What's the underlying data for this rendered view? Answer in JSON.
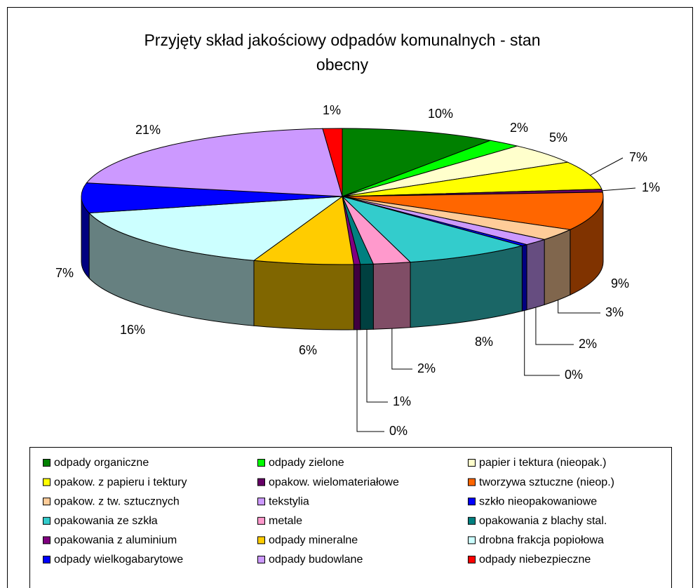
{
  "chart_data": {
    "type": "pie3d",
    "title": "Przyjęty skład jakościowy odpadów komunalnych - stan obecny",
    "categories": [
      "odpady organiczne",
      "odpady zielone",
      "papier i tektura (nieopak.)",
      "opakow. z papieru i tektury",
      "opakow. wielomateriałowe",
      "tworzywa sztuczne (nieop.)",
      "opakow. z tw. sztucznych",
      "tekstylia",
      "szkło nieopakowaniowe",
      "opakowania ze szkła",
      "metale",
      "opakowania z blachy stal.",
      "opakowania z aluminium",
      "odpady mineralne",
      "drobna frakcja popiołowa",
      "odpady wielkogabarytowe",
      "odpady budowlane",
      "odpady niebezpieczne"
    ],
    "values": [
      9.6,
      2.1,
      4.9,
      6.7,
      0.7,
      9.1,
      2.8,
      1.6,
      0.4,
      7.9,
      2.3,
      0.8,
      0.4,
      6.2,
      15.6,
      7.1,
      20.6,
      1.2
    ],
    "value_labels": [
      "10%",
      "2%",
      "5%",
      "7%",
      "1%",
      "9%",
      "3%",
      "2%",
      "0%",
      "8%",
      "2%",
      "1%",
      "0%",
      "6%",
      "16%",
      "7%",
      "21%",
      "1%"
    ],
    "colors": [
      "#008000",
      "#00ff00",
      "#ffffcc",
      "#ffff00",
      "#660066",
      "#ff6600",
      "#ffcc99",
      "#cc99ff",
      "#0000ff",
      "#33cccc",
      "#ff99cc",
      "#008080",
      "#800080",
      "#ffcc00",
      "#ccffff",
      "#0000ff",
      "#cc99ff",
      "#ff0000"
    ],
    "legend": "bottom"
  }
}
